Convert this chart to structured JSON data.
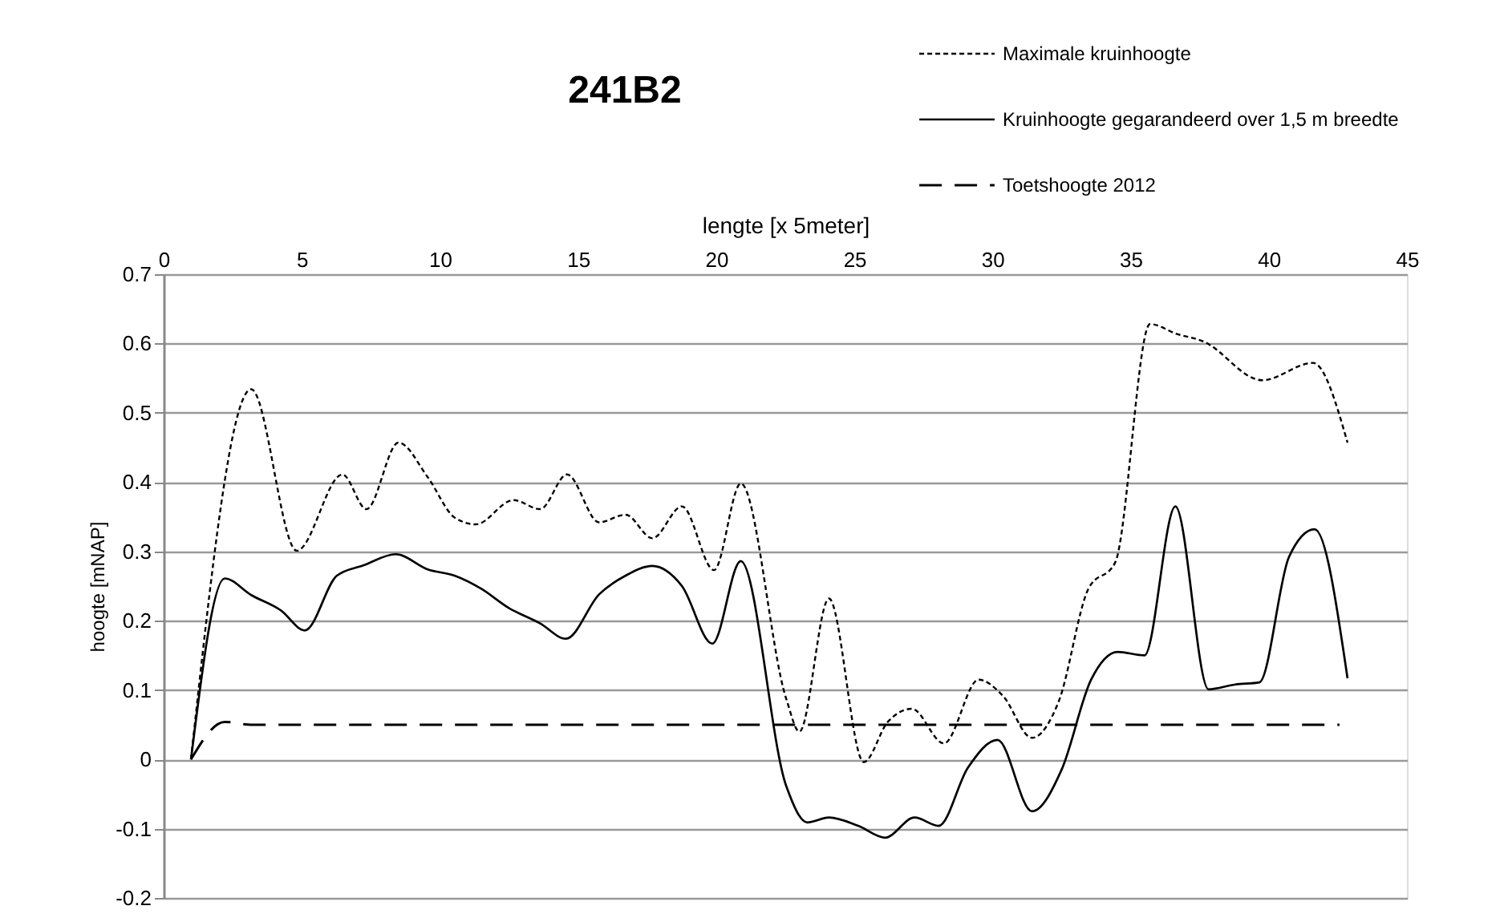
{
  "chart_data": {
    "type": "line",
    "title": "241B2",
    "xlabel": "lengte [x 5meter]",
    "ylabel": "hoogte [mNAP]",
    "xlim": [
      0,
      45
    ],
    "xticks": [
      0,
      5,
      10,
      15,
      20,
      25,
      30,
      35,
      40,
      45
    ],
    "ylim": [
      -0.2,
      0.7
    ],
    "yticks": [
      -0.2,
      -0.1,
      0,
      0.1,
      0.2,
      0.3,
      0.4,
      0.5,
      0.6,
      0.7
    ],
    "grid": "y",
    "legend": "top right",
    "marker": "none",
    "series": [
      {
        "name": "Maximale kruinhoogte",
        "color": "#000000",
        "line_style": "dotted",
        "x": [
          0.99,
          3.17,
          4.82,
          6.47,
          7.34,
          8.5,
          9.56,
          10.53,
          11.3,
          12.66,
          13.63,
          14.6,
          15.76,
          16.72,
          17.69,
          18.76,
          19.92,
          20.89,
          22.53,
          23.01,
          24.08,
          25.34,
          26.21,
          27.08,
          28.24,
          29.5,
          30.37,
          31.43,
          32.4,
          33.47,
          34.44,
          35.7,
          36.66,
          37.63,
          39.76,
          41.6,
          42.85
        ],
        "values": [
          0,
          0.534,
          0.301,
          0.411,
          0.361,
          0.457,
          0.407,
          0.349,
          0.339,
          0.374,
          0.361,
          0.411,
          0.342,
          0.353,
          0.319,
          0.365,
          0.273,
          0.398,
          0.088,
          0.04,
          0.232,
          -0.004,
          0.054,
          0.073,
          0.023,
          0.115,
          0.092,
          0.031,
          0.084,
          0.246,
          0.284,
          0.628,
          0.614,
          0.603,
          0.547,
          0.572,
          0.457
        ]
      },
      {
        "name": "Kruinhoogte gegarandeerd over 1,5 m breedte",
        "color": "#000000",
        "line_style": "solid",
        "x": [
          0.99,
          2.21,
          3.17,
          4.24,
          5.11,
          6.27,
          7.24,
          8.4,
          9.56,
          10.53,
          11.5,
          12.47,
          13.63,
          14.56,
          15.76,
          16.72,
          17.69,
          18.76,
          19.86,
          20.89,
          22.53,
          23.3,
          24.08,
          25.14,
          26.11,
          27.18,
          28.05,
          29.11,
          30.18,
          31.43,
          32.5,
          33.57,
          34.53,
          35.5,
          36.62,
          37.82,
          38.79,
          39.66,
          40.73,
          41.66,
          42.85
        ],
        "values": [
          0,
          0.261,
          0.237,
          0.215,
          0.186,
          0.265,
          0.28,
          0.296,
          0.274,
          0.265,
          0.246,
          0.219,
          0.196,
          0.174,
          0.238,
          0.265,
          0.279,
          0.25,
          0.167,
          0.286,
          -0.038,
          -0.091,
          -0.084,
          -0.096,
          -0.113,
          -0.084,
          -0.096,
          -0.012,
          0.028,
          -0.075,
          -0.015,
          0.115,
          0.155,
          0.15,
          0.365,
          0.101,
          0.108,
          0.111,
          0.292,
          0.332,
          0.117
        ]
      },
      {
        "name": "Toetshoogte 2012",
        "color": "#000000",
        "line_style": "dashed",
        "x": [
          0.99,
          2.21,
          3.17,
          42.56
        ],
        "values": [
          0,
          0.054,
          0.05,
          0.05
        ]
      }
    ]
  }
}
